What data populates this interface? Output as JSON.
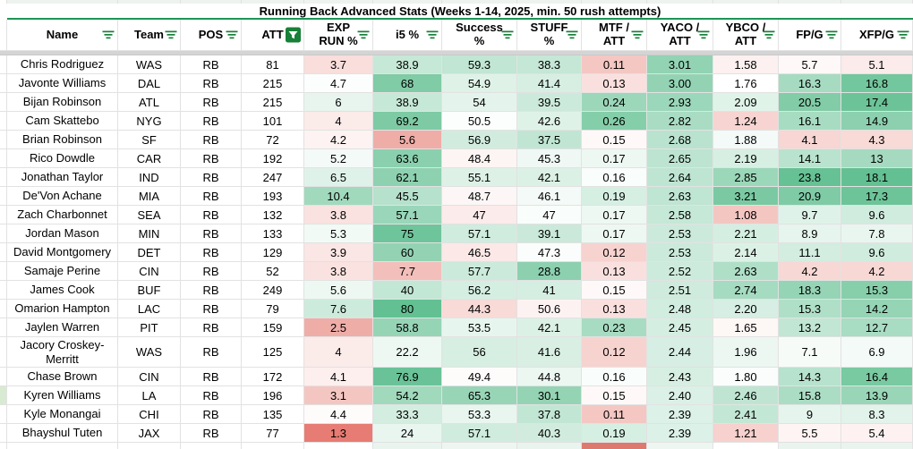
{
  "title": "Running Back Advanced Stats (Weeks 1-14, 2025, min. 50 rush attempts)",
  "columns": [
    {
      "key": "name",
      "label": "Name",
      "filter": "lines"
    },
    {
      "key": "team",
      "label": "Team",
      "filter": "lines"
    },
    {
      "key": "pos",
      "label": "POS",
      "filter": "lines"
    },
    {
      "key": "att",
      "label": "ATT",
      "filter": "funnel"
    },
    {
      "key": "exp_run_pct",
      "label": "EXP\nRUN %",
      "filter": "lines"
    },
    {
      "key": "i5_pct",
      "label": "i5 %",
      "filter": "lines"
    },
    {
      "key": "success_pct",
      "label": "Success\n%",
      "filter": "lines"
    },
    {
      "key": "stuff_pct",
      "label": "STUFF\n%",
      "filter": "lines"
    },
    {
      "key": "mtf_att",
      "label": "MTF /\nATT",
      "filter": "lines"
    },
    {
      "key": "yaco_att",
      "label": "YACO /\nATT",
      "filter": "lines"
    },
    {
      "key": "ybco_att",
      "label": "YBCO /\nATT",
      "filter": "lines"
    },
    {
      "key": "fpg",
      "label": "FP/G",
      "filter": "lines"
    },
    {
      "key": "xfpg",
      "label": "XFP/G",
      "filter": "lines"
    }
  ],
  "rows": [
    {
      "cells": [
        "Chris Rodriguez",
        "WAS",
        "RB",
        "81",
        "3.7",
        "38.9",
        "59.3",
        "38.3",
        "0.11",
        "3.01",
        "1.58",
        "5.7",
        "5.1"
      ]
    },
    {
      "cells": [
        "Javonte Williams",
        "DAL",
        "RB",
        "215",
        "4.7",
        "68",
        "54.9",
        "41.4",
        "0.13",
        "3.00",
        "1.76",
        "16.3",
        "16.8"
      ]
    },
    {
      "cells": [
        "Bijan Robinson",
        "ATL",
        "RB",
        "215",
        "6",
        "38.9",
        "54",
        "39.5",
        "0.24",
        "2.93",
        "2.09",
        "20.5",
        "17.4"
      ]
    },
    {
      "cells": [
        "Cam Skattebo",
        "NYG",
        "RB",
        "101",
        "4",
        "69.2",
        "50.5",
        "42.6",
        "0.26",
        "2.82",
        "1.24",
        "16.1",
        "14.9"
      ]
    },
    {
      "cells": [
        "Brian Robinson",
        "SF",
        "RB",
        "72",
        "4.2",
        "5.6",
        "56.9",
        "37.5",
        "0.15",
        "2.68",
        "1.88",
        "4.1",
        "4.3"
      ]
    },
    {
      "cells": [
        "Rico Dowdle",
        "CAR",
        "RB",
        "192",
        "5.2",
        "63.6",
        "48.4",
        "45.3",
        "0.17",
        "2.65",
        "2.19",
        "14.1",
        "13"
      ]
    },
    {
      "cells": [
        "Jonathan Taylor",
        "IND",
        "RB",
        "247",
        "6.5",
        "62.1",
        "55.1",
        "42.1",
        "0.16",
        "2.64",
        "2.85",
        "23.8",
        "18.1"
      ]
    },
    {
      "cells": [
        "De'Von Achane",
        "MIA",
        "RB",
        "193",
        "10.4",
        "45.5",
        "48.7",
        "46.1",
        "0.19",
        "2.63",
        "3.21",
        "20.9",
        "17.3"
      ]
    },
    {
      "cells": [
        "Zach Charbonnet",
        "SEA",
        "RB",
        "132",
        "3.8",
        "57.1",
        "47",
        "47",
        "0.17",
        "2.58",
        "1.08",
        "9.7",
        "9.6"
      ]
    },
    {
      "cells": [
        "Jordan Mason",
        "MIN",
        "RB",
        "133",
        "5.3",
        "75",
        "57.1",
        "39.1",
        "0.17",
        "2.53",
        "2.21",
        "8.9",
        "7.8"
      ]
    },
    {
      "cells": [
        "David Montgomery",
        "DET",
        "RB",
        "129",
        "3.9",
        "60",
        "46.5",
        "47.3",
        "0.12",
        "2.53",
        "2.14",
        "11.1",
        "9.6"
      ]
    },
    {
      "cells": [
        "Samaje Perine",
        "CIN",
        "RB",
        "52",
        "3.8",
        "7.7",
        "57.7",
        "28.8",
        "0.13",
        "2.52",
        "2.63",
        "4.2",
        "4.2"
      ]
    },
    {
      "cells": [
        "James Cook",
        "BUF",
        "RB",
        "249",
        "5.6",
        "40",
        "56.2",
        "41",
        "0.15",
        "2.51",
        "2.74",
        "18.3",
        "15.3"
      ]
    },
    {
      "cells": [
        "Omarion Hampton",
        "LAC",
        "RB",
        "79",
        "7.6",
        "80",
        "44.3",
        "50.6",
        "0.13",
        "2.48",
        "2.20",
        "15.3",
        "14.2"
      ]
    },
    {
      "cells": [
        "Jaylen Warren",
        "PIT",
        "RB",
        "159",
        "2.5",
        "58.8",
        "53.5",
        "42.1",
        "0.23",
        "2.45",
        "1.65",
        "13.2",
        "12.7"
      ]
    },
    {
      "cells": [
        "Jacory Croskey-Merritt",
        "WAS",
        "RB",
        "125",
        "4",
        "22.2",
        "56",
        "41.6",
        "0.12",
        "2.44",
        "1.96",
        "7.1",
        "6.9"
      ],
      "tall": true
    },
    {
      "cells": [
        "Chase Brown",
        "CIN",
        "RB",
        "172",
        "4.1",
        "76.9",
        "49.4",
        "44.8",
        "0.16",
        "2.43",
        "1.80",
        "14.3",
        "16.4"
      ]
    },
    {
      "cells": [
        "Kyren Williams",
        "LA",
        "RB",
        "196",
        "3.1",
        "54.2",
        "65.3",
        "30.1",
        "0.15",
        "2.40",
        "2.46",
        "15.8",
        "13.9"
      ],
      "marker": true
    },
    {
      "cells": [
        "Kyle Monangai",
        "CHI",
        "RB",
        "135",
        "4.4",
        "33.3",
        "53.3",
        "37.8",
        "0.11",
        "2.39",
        "2.41",
        "9",
        "8.3"
      ]
    },
    {
      "cells": [
        "Bhayshul Tuten",
        "JAX",
        "RB",
        "77",
        "1.3",
        "24",
        "57.1",
        "40.3",
        "0.19",
        "2.39",
        "1.21",
        "5.5",
        "5.4"
      ]
    }
  ],
  "color_scales": {
    "exp_run_pct": {
      "min": 1.3,
      "mid": 4.5,
      "max": 15
    },
    "i5_pct": {
      "min": 0,
      "mid": 15,
      "max": 85
    },
    "success_pct": {
      "min": 30,
      "mid": 50,
      "max": 75
    },
    "stuff_pct": {
      "min": 20,
      "mid": 48,
      "max": 75,
      "reverse": true
    },
    "mtf_att": {
      "min": 0.05,
      "mid": 0.155,
      "max": 0.3
    },
    "yaco_att": {
      "min": 1.0,
      "mid": 2.1,
      "max": 3.5
    },
    "ybco_att": {
      "min": 0.2,
      "mid": 1.75,
      "max": 3.6
    },
    "fpg": {
      "min": 0,
      "mid": 6,
      "max": 25.5
    },
    "xfpg": {
      "min": 0,
      "mid": 6,
      "max": 19
    }
  },
  "colors": {
    "scale_green": "#57bb8a",
    "scale_red": "#e67c73",
    "icon_green": "#188038",
    "frozen_line_green": "#1d9556",
    "marker_green": "#d9ead3",
    "divider_gray": "#d4d4d4",
    "gridline_gray": "#e2e2e2",
    "partial_row_red": "#dd7a6f",
    "partial_row_green": "#e9f4ee"
  },
  "partial_bottom_row": {
    "i5_pct": "#e9f4ee",
    "success_pct": "#eef6f1",
    "stuff_pct": "#e9f4ee",
    "mtf_att": "#dd7a6f",
    "yaco_att": "#edf6f1",
    "fpg": "#e9f4ee",
    "xfpg": "#e9f4ee"
  }
}
